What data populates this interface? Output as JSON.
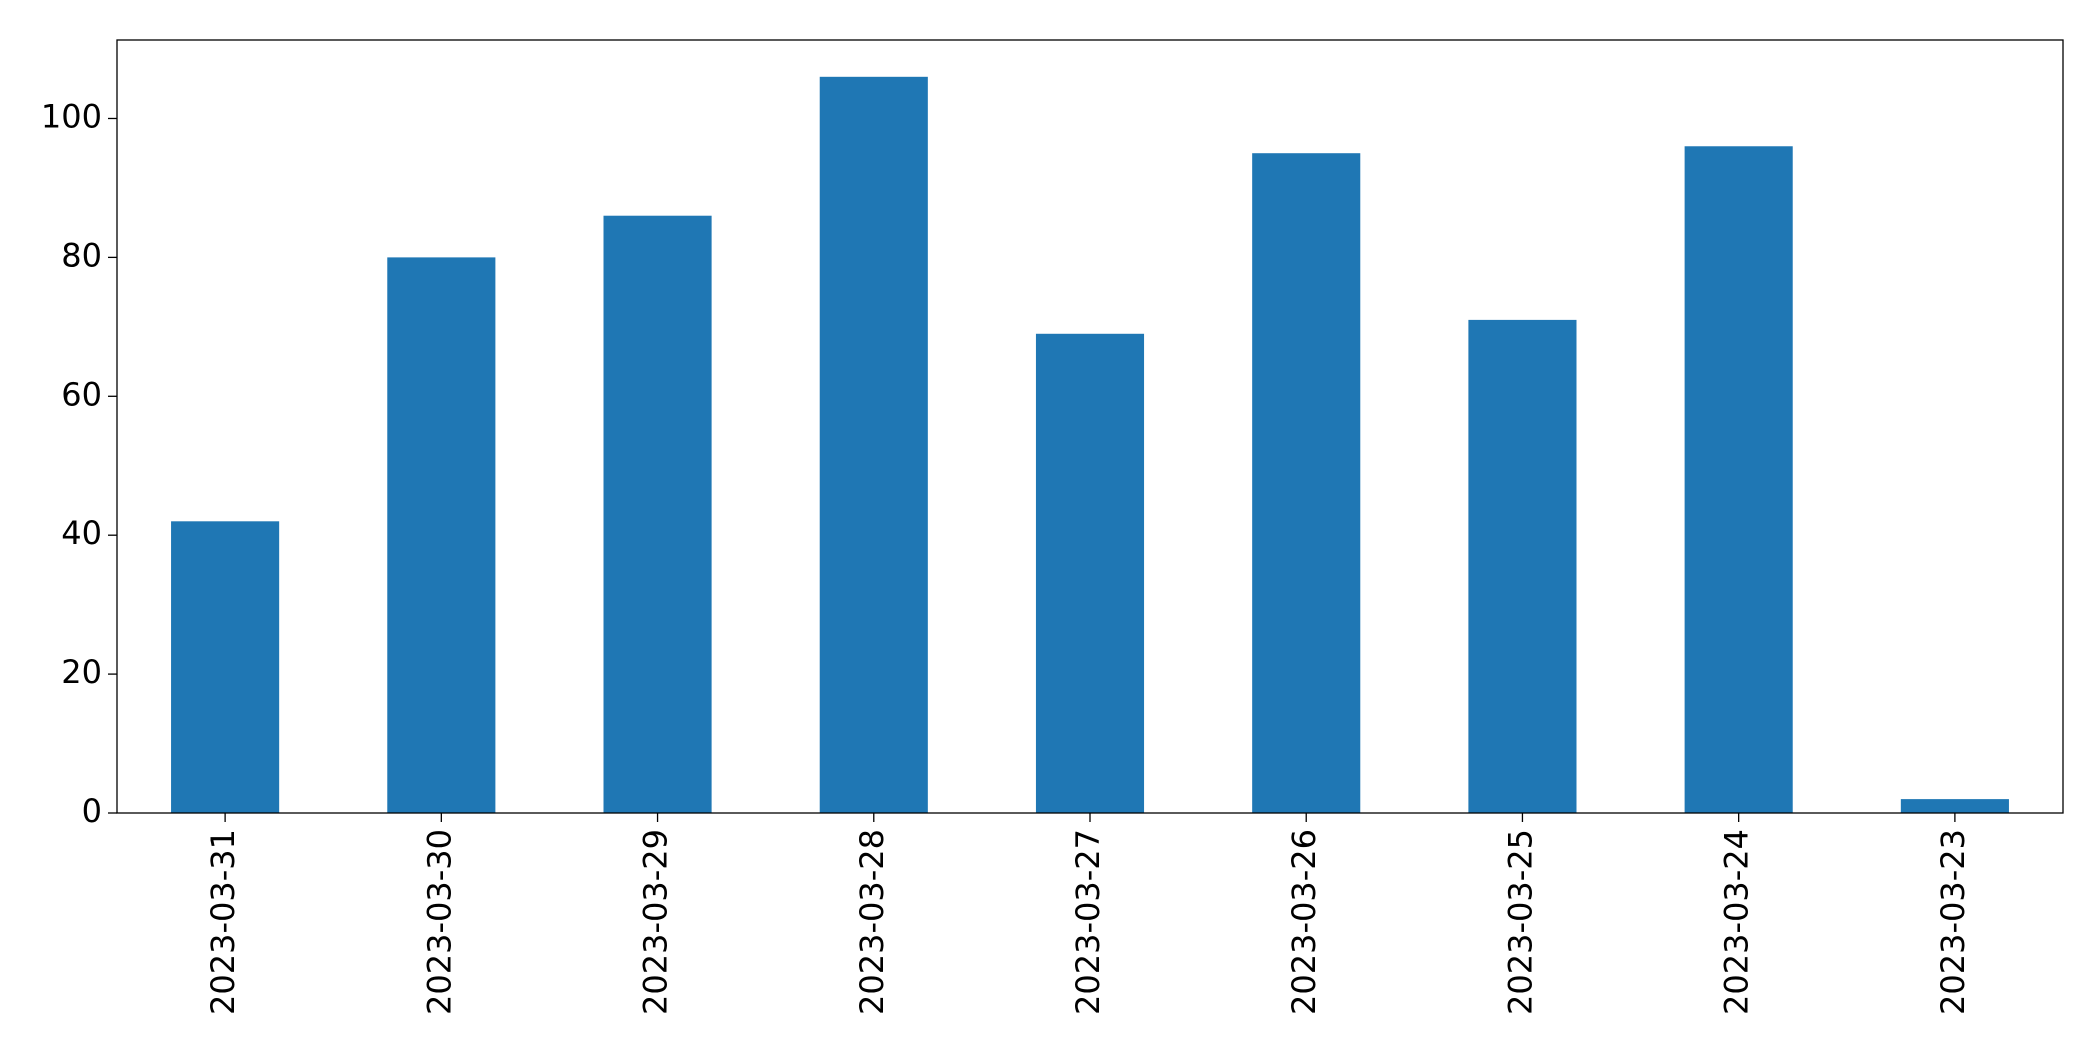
{
  "chart_data": {
    "type": "bar",
    "categories": [
      "2023-03-31",
      "2023-03-30",
      "2023-03-29",
      "2023-03-28",
      "2023-03-27",
      "2023-03-26",
      "2023-03-25",
      "2023-03-24",
      "2023-03-23"
    ],
    "values": [
      42,
      80,
      86,
      106,
      69,
      95,
      71,
      96,
      2
    ],
    "color": "#1f77b4",
    "ylim": [
      0,
      111.3
    ],
    "yticks": [
      0,
      20,
      40,
      60,
      80,
      100
    ],
    "grid": false
  }
}
